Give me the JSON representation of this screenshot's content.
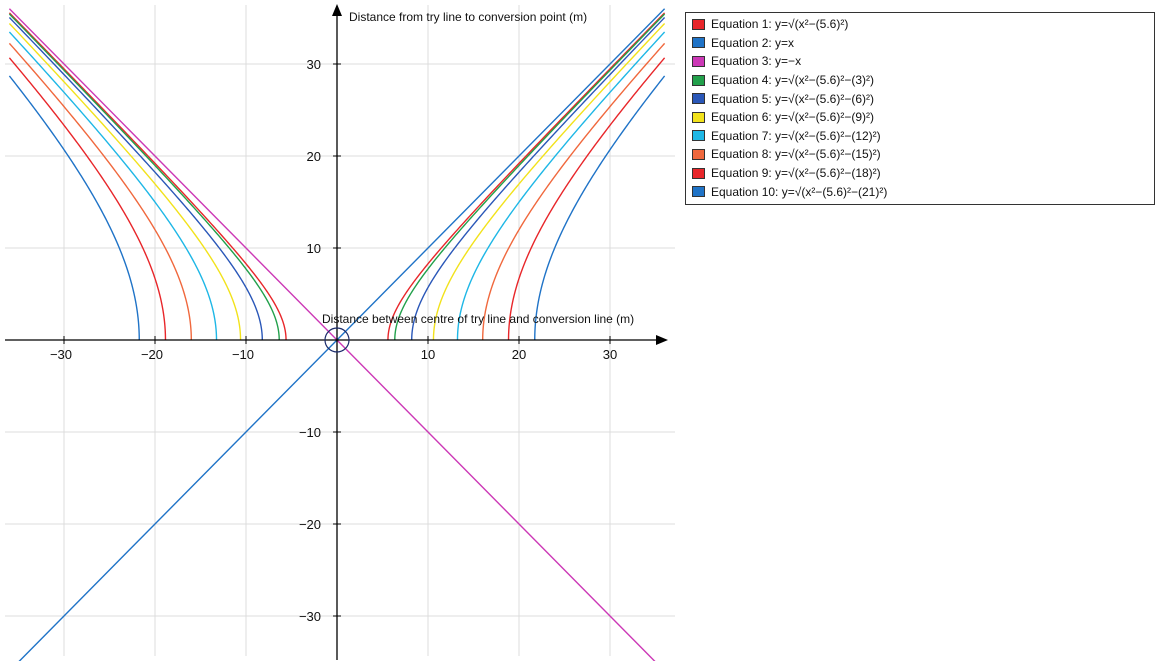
{
  "chart_data": {
    "type": "line",
    "title": "",
    "xlabel": "Distance between centre of try line and conversion line (m)",
    "ylabel": "Distance from try line to conversion point (m)",
    "xlim": [
      -36,
      36
    ],
    "ylim": [
      -36,
      36
    ],
    "x_ticks": [
      -30,
      -20,
      -10,
      10,
      20,
      30
    ],
    "y_ticks": [
      30,
      20,
      10,
      -10,
      -20,
      -30
    ],
    "grid": true,
    "legend_position": "right",
    "origin_marker": "circle",
    "series": [
      {
        "name": "Equation 1: y=√(x²−(5.6)²)",
        "color": "#e8262a",
        "kind": "hyperbola",
        "a": 5.6,
        "x_min": 5.6,
        "x_max": 36
      },
      {
        "name": "Equation 2: y=x",
        "color": "#1f73c7",
        "kind": "linear",
        "slope": 1,
        "x_range": [
          -36,
          36
        ]
      },
      {
        "name": "Equation 3: y=−x",
        "color": "#cc38b6",
        "kind": "linear",
        "slope": -1,
        "x_range": [
          -36,
          36
        ]
      },
      {
        "name": "Equation 4: y=√(x²−(5.6)²−(3)²)",
        "color": "#22a04b",
        "kind": "hyperbola",
        "a": 6.35,
        "x_min": 6.35,
        "x_max": 36
      },
      {
        "name": "Equation 5: y=√(x²−(5.6)²−(6)²)",
        "color": "#2a57b8",
        "kind": "hyperbola",
        "a": 8.21,
        "x_min": 8.21,
        "x_max": 36
      },
      {
        "name": "Equation 6: y=√(x²−(5.6)²−(9)²)",
        "color": "#f2e21b",
        "kind": "hyperbola",
        "a": 10.6,
        "x_min": 10.6,
        "x_max": 36
      },
      {
        "name": "Equation 7: y=√(x²−(5.6)²−(12)²)",
        "color": "#1eb7e6",
        "kind": "hyperbola",
        "a": 13.24,
        "x_min": 13.24,
        "x_max": 36
      },
      {
        "name": "Equation 8: y=√(x²−(5.6)²−(15)²)",
        "color": "#f0683d",
        "kind": "hyperbola",
        "a": 16.01,
        "x_min": 16.01,
        "x_max": 36
      },
      {
        "name": "Equation 9: y=√(x²−(5.6)²−(18)²)",
        "color": "#e8262a",
        "kind": "hyperbola",
        "a": 18.85,
        "x_min": 18.85,
        "x_max": 36
      },
      {
        "name": "Equation 10: y=√(x²−(5.6)²−(21)²)",
        "color": "#1f73c7",
        "kind": "hyperbola",
        "a": 21.73,
        "x_min": 21.73,
        "x_max": 36
      }
    ]
  }
}
